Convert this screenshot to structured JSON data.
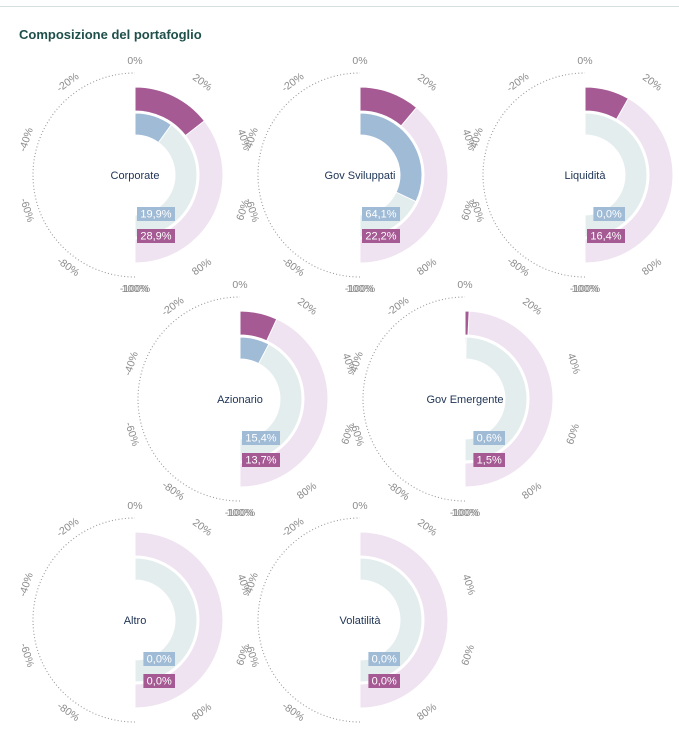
{
  "title": "Composizione del portafoglio",
  "ticks": [
    "0%",
    "20%",
    "40%",
    "60%",
    "80%",
    "100%",
    "-100%",
    "-80%",
    "-60%",
    "-40%",
    "-20%"
  ],
  "colors": {
    "inner_value": "#9fbbd6",
    "inner_track": "#e3eded",
    "outer_value": "#a65a94",
    "outer_track": "#efe2f1",
    "dots": "#9a9a9a",
    "category_text": "#1d3354",
    "title": "#1f4f4a"
  },
  "chart_data": [
    {
      "type": "radial-bar",
      "category": "Corporate",
      "inner_value": 19.9,
      "inner_label": "19,9%",
      "outer_value": 28.9,
      "outer_label": "28,9%",
      "range": [
        -100,
        100
      ]
    },
    {
      "type": "radial-bar",
      "category": "Gov Sviluppati",
      "inner_value": 64.1,
      "inner_label": "64,1%",
      "outer_value": 22.2,
      "outer_label": "22,2%",
      "range": [
        -100,
        100
      ]
    },
    {
      "type": "radial-bar",
      "category": "Liquidità",
      "inner_value": 0.0,
      "inner_label": "0,0%",
      "outer_value": 16.4,
      "outer_label": "16,4%",
      "range": [
        -100,
        100
      ]
    },
    {
      "type": "radial-bar",
      "category": "Azionario",
      "inner_value": 15.4,
      "inner_label": "15,4%",
      "outer_value": 13.7,
      "outer_label": "13,7%",
      "range": [
        -100,
        100
      ]
    },
    {
      "type": "radial-bar",
      "category": "Gov Emergente",
      "inner_value": 0.6,
      "inner_label": "0,6%",
      "outer_value": 1.5,
      "outer_label": "1,5%",
      "range": [
        -100,
        100
      ]
    },
    {
      "type": "radial-bar",
      "category": "Altro",
      "inner_value": 0.0,
      "inner_label": "0,0%",
      "outer_value": 0.0,
      "outer_label": "0,0%",
      "range": [
        -100,
        100
      ]
    },
    {
      "type": "radial-bar",
      "category": "Volatilità",
      "inner_value": 0.0,
      "inner_label": "0,0%",
      "outer_value": 0.0,
      "outer_label": "0,0%",
      "range": [
        -100,
        100
      ]
    }
  ]
}
